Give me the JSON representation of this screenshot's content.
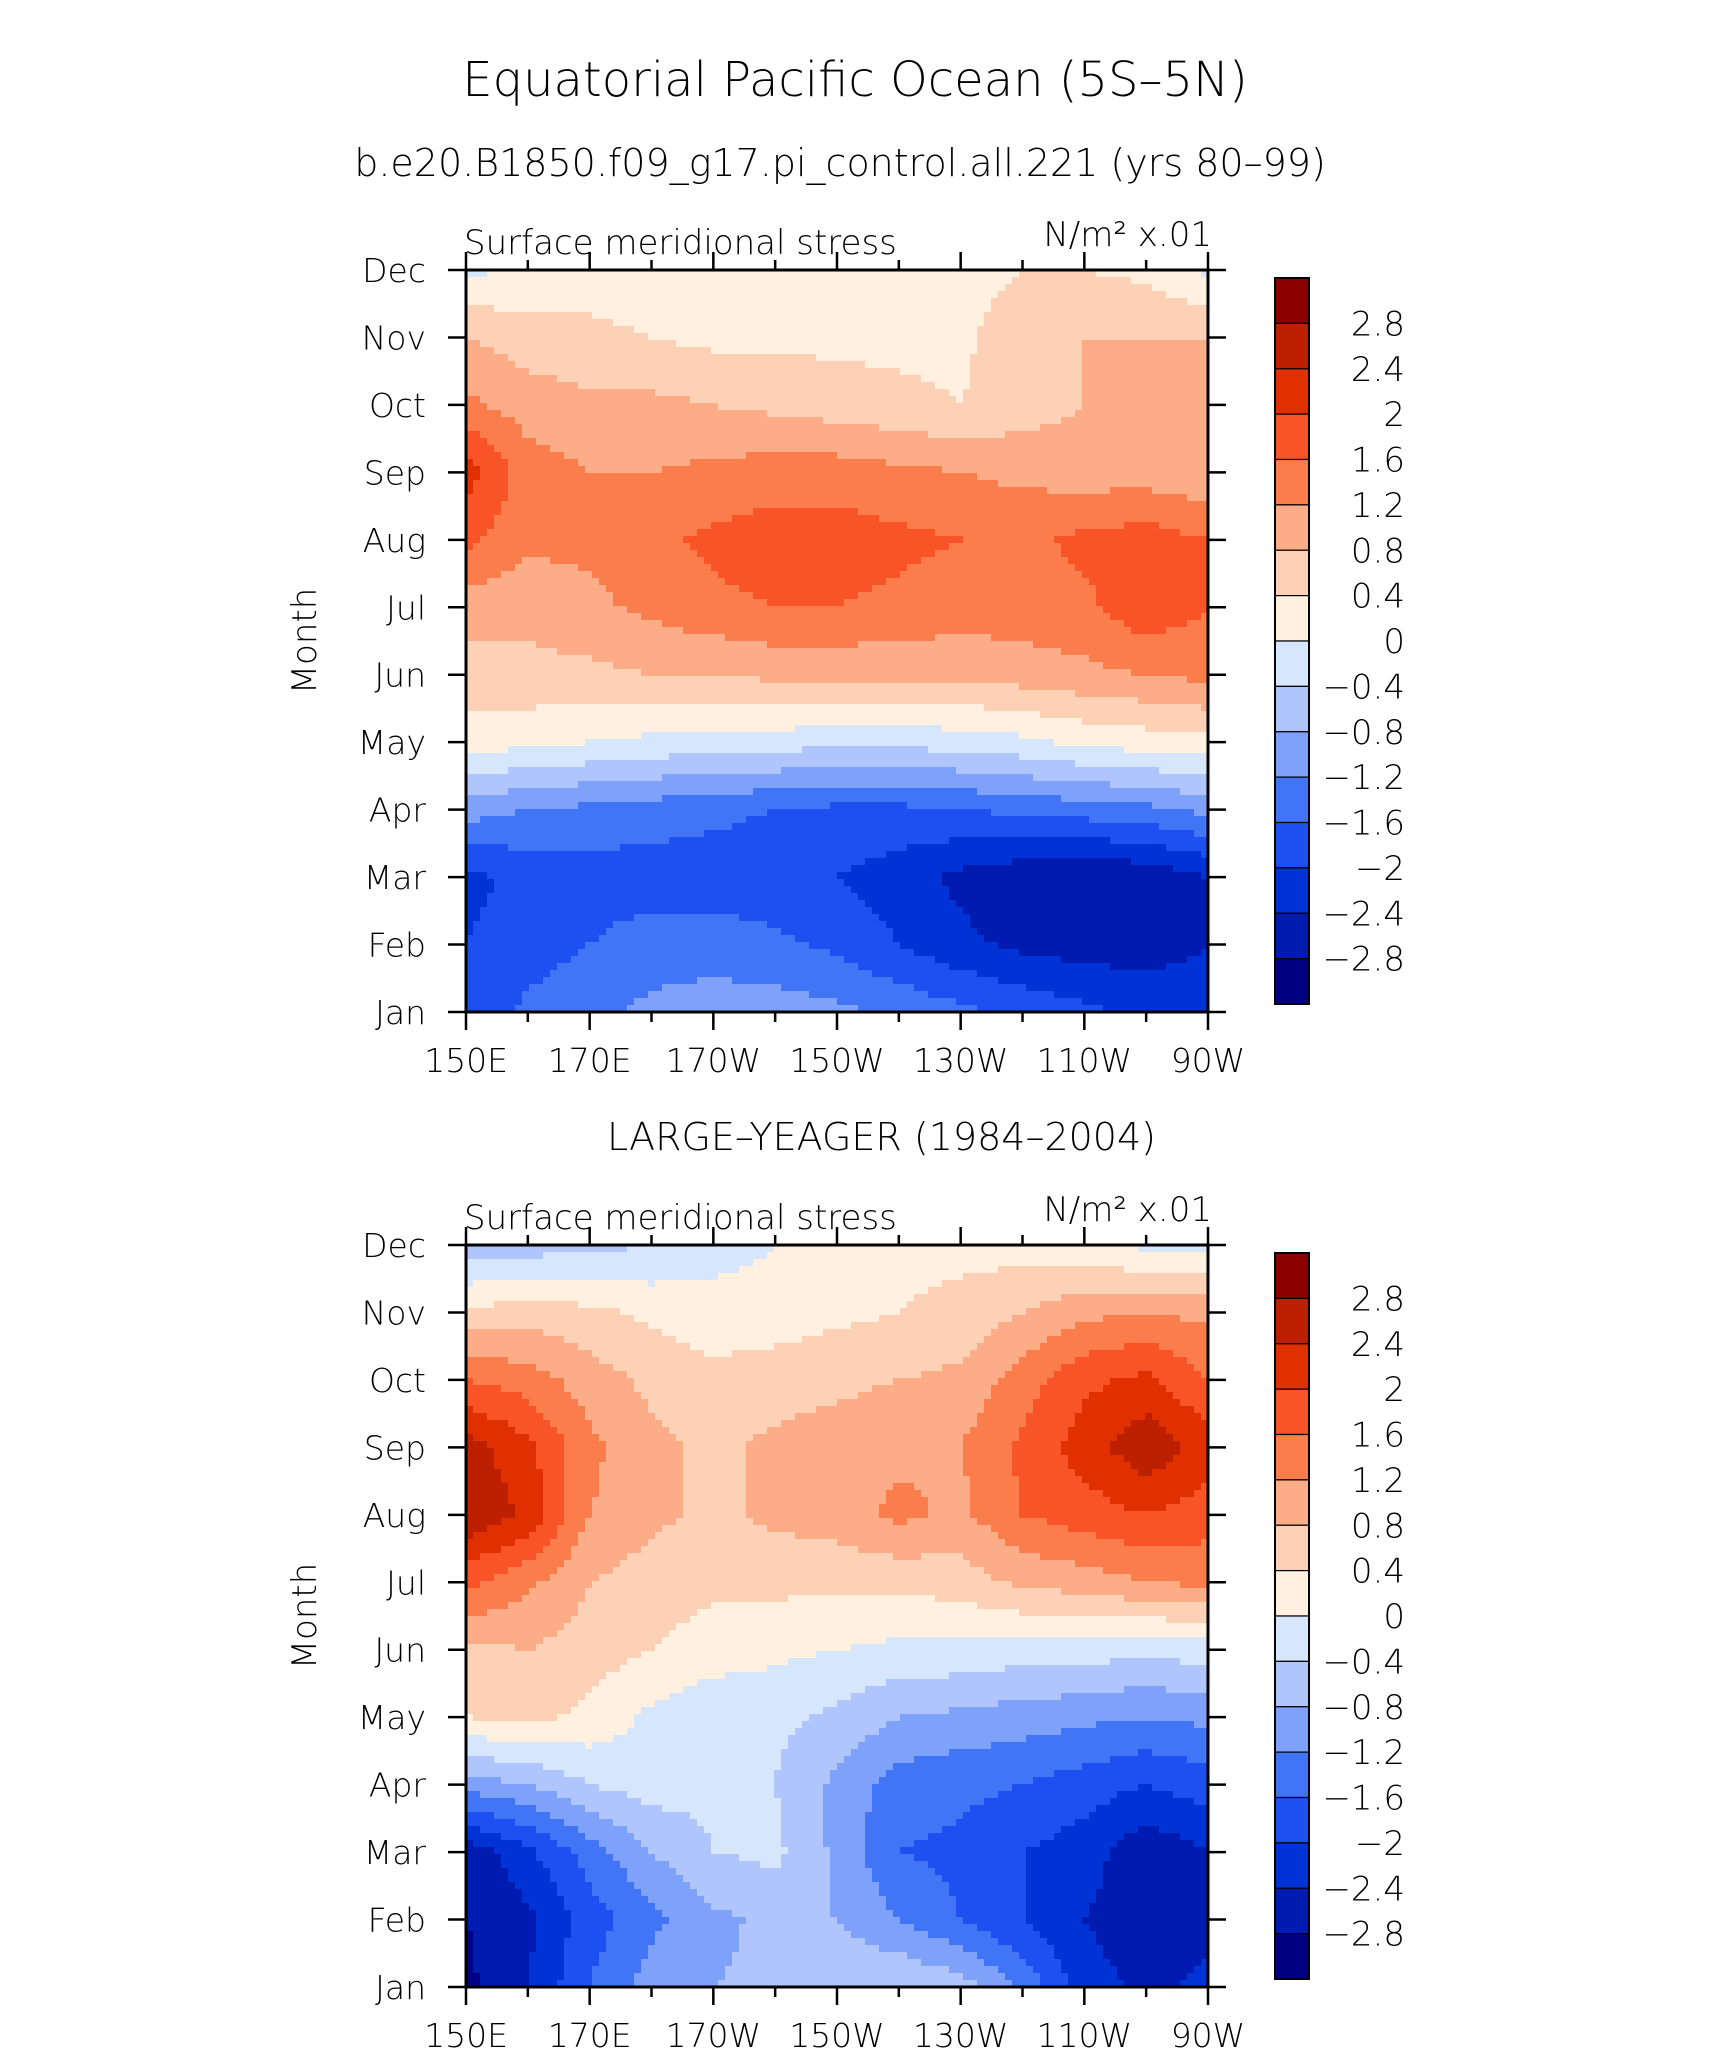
{
  "figure": {
    "title": "Equatorial Pacific Ocean (5S–5N)",
    "subtitle": "b.e20.B1850.f09_g17.pi_control.all.221 (yrs 80–99)"
  },
  "colorbar": {
    "colors": [
      "#000082",
      "#001bb0",
      "#0033d6",
      "#1c50f0",
      "#4175f5",
      "#7ea1f9",
      "#afc5fc",
      "#d6e6fd",
      "#fff0e0",
      "#fdd1b6",
      "#fcad88",
      "#fb7d4c",
      "#f95427",
      "#e03000",
      "#bd2000",
      "#8c0000"
    ],
    "labels": [
      "2.8",
      "2.4",
      "2",
      "1.6",
      "1.2",
      "0.8",
      "0.4",
      "0",
      "−0.4",
      "−0.8",
      "−1.2",
      "−1.6",
      "−2",
      "−2.4",
      "−2.8"
    ]
  },
  "chart_data": [
    {
      "type": "heatmap",
      "panel_title": "",
      "left_label": "Surface meridional stress",
      "right_label": "N/m² x.01",
      "ylabel": "Month",
      "x_tick_labels": [
        "150E",
        "170E",
        "170W",
        "150W",
        "130W",
        "110W",
        "90W"
      ],
      "x": [
        150,
        160,
        170,
        180,
        190,
        200,
        210,
        220,
        230,
        240,
        250,
        260,
        270
      ],
      "y": [
        "Jan",
        "Feb",
        "Mar",
        "Apr",
        "May",
        "Jun",
        "Jul",
        "Aug",
        "Sep",
        "Oct",
        "Nov",
        "Dec"
      ],
      "values": [
        [
          -1.9,
          -1.5,
          -1.3,
          -1.1,
          -1.0,
          -1.0,
          -1.1,
          -1.3,
          -1.5,
          -1.7,
          -1.9,
          -2.1,
          -2.2
        ],
        [
          -2.0,
          -1.8,
          -1.6,
          -1.4,
          -1.4,
          -1.5,
          -1.7,
          -2.0,
          -2.3,
          -2.5,
          -2.6,
          -2.6,
          -2.4
        ],
        [
          -2.1,
          -1.9,
          -1.8,
          -1.8,
          -1.8,
          -1.9,
          -2.0,
          -2.2,
          -2.5,
          -2.7,
          -2.8,
          -2.7,
          -2.4
        ],
        [
          -1.0,
          -1.2,
          -1.3,
          -1.4,
          -1.5,
          -1.6,
          -1.7,
          -1.7,
          -1.6,
          -1.5,
          -1.4,
          -1.3,
          -1.1
        ],
        [
          0.2,
          0.1,
          0.0,
          -0.1,
          -0.2,
          -0.2,
          -0.3,
          -0.3,
          -0.2,
          -0.1,
          0.1,
          0.2,
          0.3
        ],
        [
          0.6,
          0.7,
          0.7,
          0.8,
          0.8,
          0.9,
          0.9,
          0.9,
          0.9,
          1.0,
          1.1,
          1.2,
          1.3
        ],
        [
          1.0,
          0.9,
          1.1,
          1.3,
          1.5,
          1.6,
          1.6,
          1.5,
          1.4,
          1.4,
          1.5,
          1.9,
          1.6
        ],
        [
          1.7,
          1.3,
          1.3,
          1.5,
          1.7,
          1.8,
          1.8,
          1.7,
          1.6,
          1.5,
          1.7,
          1.8,
          1.6
        ],
        [
          2.2,
          1.4,
          1.2,
          1.2,
          1.3,
          1.4,
          1.4,
          1.3,
          1.2,
          1.1,
          1.0,
          1.0,
          0.9
        ],
        [
          1.3,
          1.0,
          0.9,
          0.9,
          0.8,
          0.7,
          0.6,
          0.5,
          0.4,
          0.6,
          0.8,
          0.9,
          0.8
        ],
        [
          0.8,
          0.6,
          0.5,
          0.4,
          0.3,
          0.3,
          0.3,
          0.3,
          0.3,
          0.7,
          0.8,
          0.8,
          0.8
        ],
        [
          -0.1,
          0.1,
          0.2,
          0.2,
          0.2,
          0.1,
          0.1,
          0.1,
          0.2,
          0.4,
          0.4,
          0.3,
          -0.1
        ]
      ],
      "levels": [
        -2.8,
        -2.4,
        -2.0,
        -1.6,
        -1.2,
        -0.8,
        -0.4,
        0,
        0.4,
        0.8,
        1.2,
        1.6,
        2.0,
        2.4,
        2.8
      ]
    },
    {
      "type": "heatmap",
      "panel_title": "LARGE–YEAGER (1984–2004)",
      "left_label": "Surface meridional stress",
      "right_label": "N/m² x.01",
      "ylabel": "Month",
      "x_tick_labels": [
        "150E",
        "170E",
        "170W",
        "150W",
        "130W",
        "110W",
        "90W"
      ],
      "x": [
        150,
        160,
        170,
        180,
        190,
        200,
        210,
        220,
        230,
        240,
        250,
        260,
        270
      ],
      "y": [
        "Jan",
        "Feb",
        "Mar",
        "Apr",
        "May",
        "Jun",
        "Jul",
        "Aug",
        "Sep",
        "Oct",
        "Nov",
        "Dec"
      ],
      "values": [
        [
          -2.9,
          -2.4,
          -1.6,
          -1.0,
          -0.8,
          -0.7,
          -0.5,
          -0.4,
          -0.6,
          -1.3,
          -2.2,
          -2.5,
          -2.3
        ],
        [
          -2.8,
          -2.5,
          -1.8,
          -1.3,
          -0.9,
          -0.7,
          -0.8,
          -1.2,
          -1.6,
          -2.0,
          -2.4,
          -2.7,
          -2.5
        ],
        [
          -2.7,
          -2.1,
          -1.4,
          -0.8,
          -0.4,
          -0.3,
          -0.9,
          -1.6,
          -1.7,
          -2.0,
          -2.2,
          -2.7,
          -2.4
        ],
        [
          -1.0,
          -0.8,
          -0.4,
          -0.2,
          -0.3,
          -0.4,
          -0.9,
          -1.4,
          -1.5,
          -1.6,
          -1.8,
          -2.0,
          -1.8
        ],
        [
          0.4,
          0.5,
          0.3,
          -0.1,
          -0.3,
          -0.3,
          -0.5,
          -0.8,
          -0.9,
          -1.0,
          -1.1,
          -1.2,
          -1.1
        ],
        [
          0.7,
          0.8,
          0.6,
          0.4,
          0.2,
          0.1,
          0.0,
          -0.1,
          -0.1,
          -0.2,
          -0.2,
          -0.3,
          -0.2
        ],
        [
          1.7,
          1.3,
          0.8,
          0.6,
          0.5,
          0.5,
          0.5,
          0.5,
          0.6,
          0.9,
          1.0,
          1.2,
          1.3
        ],
        [
          2.8,
          2.3,
          1.2,
          0.9,
          0.7,
          0.9,
          1.0,
          1.3,
          1.1,
          1.6,
          1.8,
          2.0,
          1.8
        ],
        [
          2.6,
          2.1,
          1.3,
          0.9,
          0.7,
          0.9,
          1.0,
          1.1,
          1.2,
          1.7,
          2.2,
          2.7,
          2.2
        ],
        [
          1.6,
          1.4,
          1.0,
          0.7,
          0.5,
          0.6,
          0.7,
          0.8,
          0.9,
          1.4,
          1.9,
          2.1,
          1.6
        ],
        [
          0.5,
          0.6,
          0.5,
          0.3,
          0.2,
          0.2,
          0.3,
          0.4,
          0.5,
          0.8,
          1.1,
          1.2,
          1.1
        ],
        [
          -0.7,
          -0.6,
          -0.5,
          -0.4,
          -0.2,
          0.0,
          0.2,
          0.3,
          0.3,
          0.2,
          0.1,
          -0.1,
          -0.2
        ]
      ],
      "levels": [
        -2.8,
        -2.4,
        -2.0,
        -1.6,
        -1.2,
        -0.8,
        -0.4,
        0,
        0.4,
        0.8,
        1.2,
        1.6,
        2.0,
        2.4,
        2.8
      ]
    }
  ]
}
